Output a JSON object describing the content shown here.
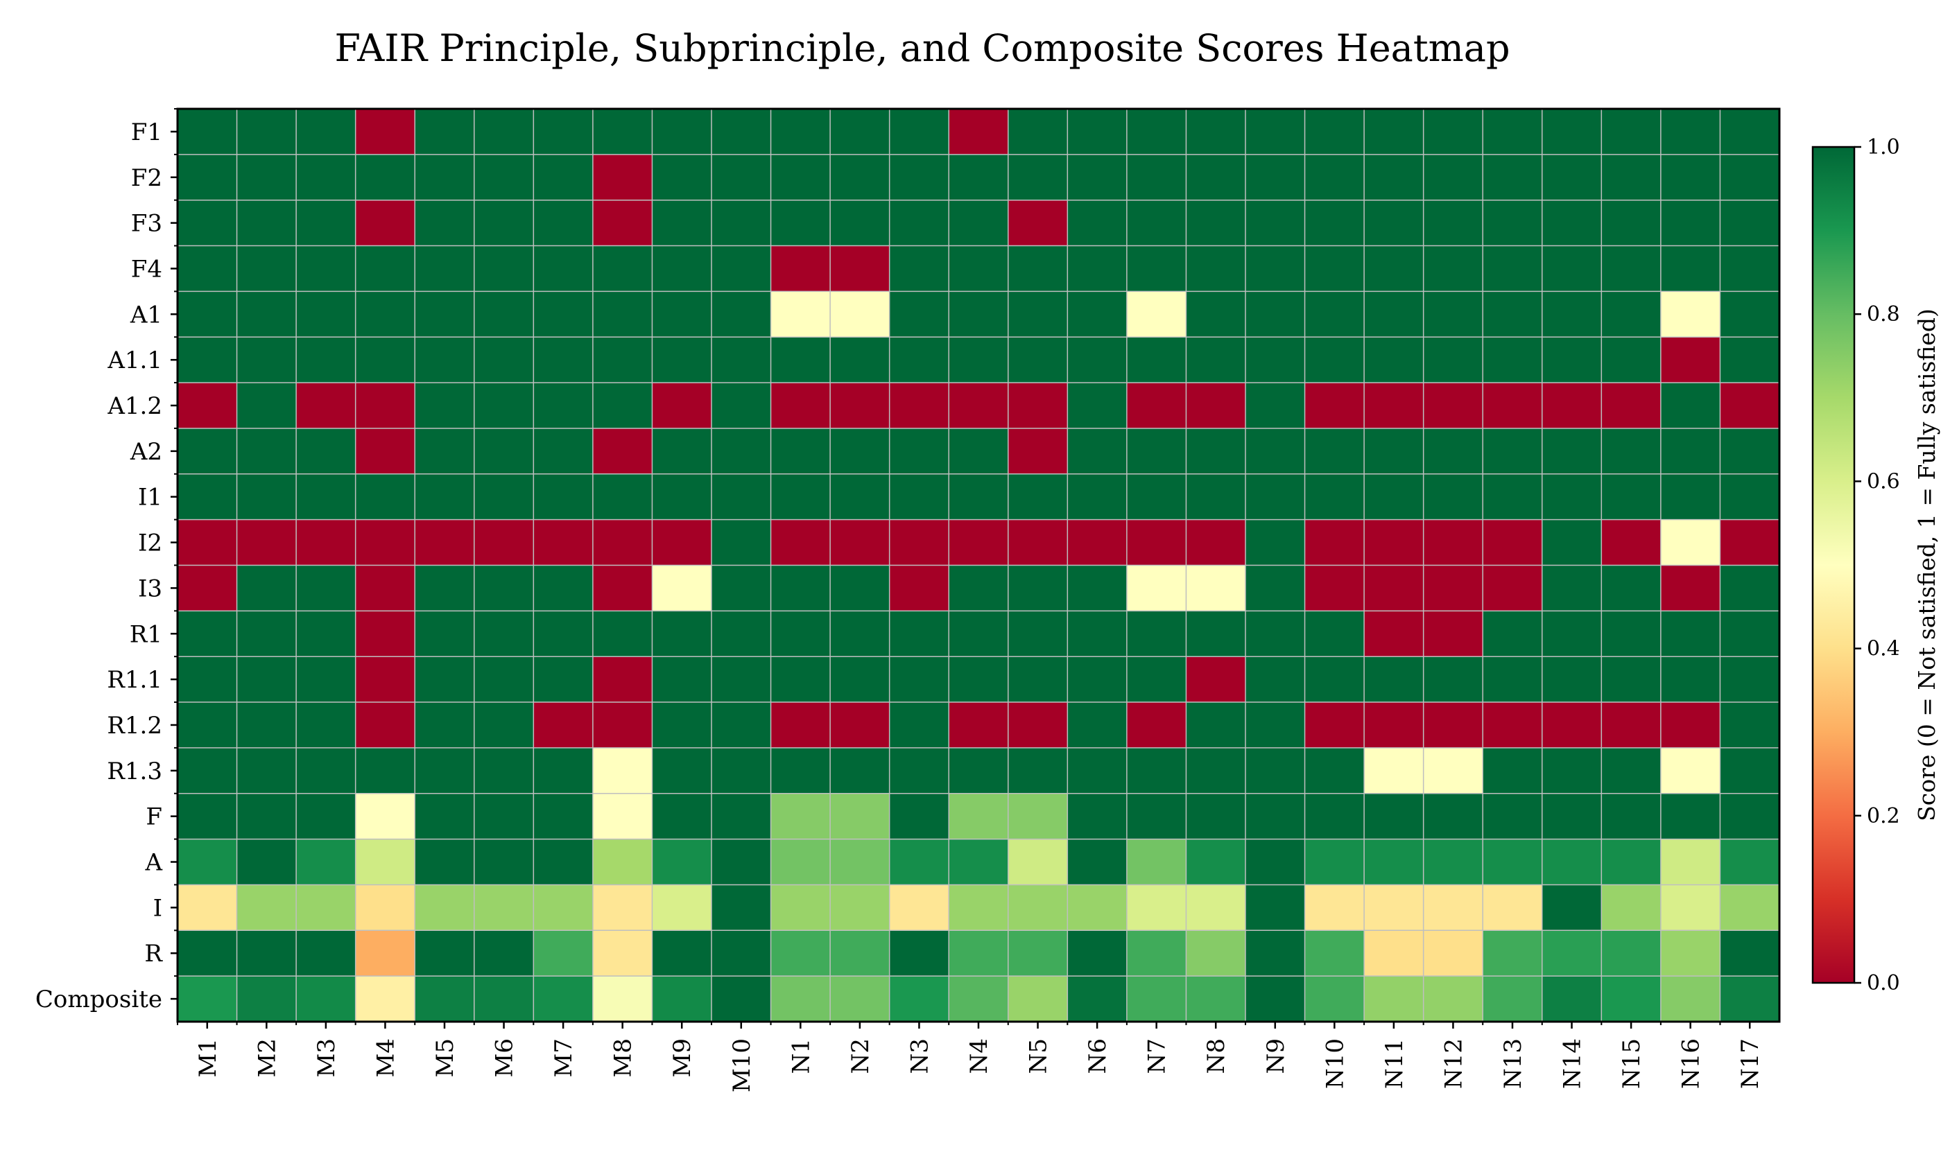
{
  "chart_data": {
    "type": "heatmap",
    "title": "FAIR Principle, Subprinciple, and Composite Scores Heatmap",
    "rows": [
      "F1",
      "F2",
      "F3",
      "F4",
      "A1",
      "A1.1",
      "A1.2",
      "A2",
      "I1",
      "I2",
      "I3",
      "R1",
      "R1.1",
      "R1.2",
      "R1.3",
      "F",
      "A",
      "I",
      "R",
      "Composite"
    ],
    "columns": [
      "M1",
      "M2",
      "M3",
      "M4",
      "M5",
      "M6",
      "M7",
      "M8",
      "M9",
      "M10",
      "N1",
      "N2",
      "N3",
      "N4",
      "N5",
      "N6",
      "N7",
      "N8",
      "N9",
      "N10",
      "N11",
      "N12",
      "N13",
      "N14",
      "N15",
      "N16",
      "N17"
    ],
    "values": [
      [
        1,
        1,
        1,
        0,
        1,
        1,
        1,
        1,
        1,
        1,
        1,
        1,
        1,
        0,
        1,
        1,
        1,
        1,
        1,
        1,
        1,
        1,
        1,
        1,
        1,
        1,
        1
      ],
      [
        1,
        1,
        1,
        1,
        1,
        1,
        1,
        0,
        1,
        1,
        1,
        1,
        1,
        1,
        1,
        1,
        1,
        1,
        1,
        1,
        1,
        1,
        1,
        1,
        1,
        1,
        1
      ],
      [
        1,
        1,
        1,
        0,
        1,
        1,
        1,
        0,
        1,
        1,
        1,
        1,
        1,
        1,
        0,
        1,
        1,
        1,
        1,
        1,
        1,
        1,
        1,
        1,
        1,
        1,
        1
      ],
      [
        1,
        1,
        1,
        1,
        1,
        1,
        1,
        1,
        1,
        1,
        0,
        0,
        1,
        1,
        1,
        1,
        1,
        1,
        1,
        1,
        1,
        1,
        1,
        1,
        1,
        1,
        1
      ],
      [
        1,
        1,
        1,
        1,
        1,
        1,
        1,
        1,
        1,
        1,
        0.5,
        0.5,
        1,
        1,
        1,
        1,
        0.5,
        1,
        1,
        1,
        1,
        1,
        1,
        1,
        1,
        0.5,
        1
      ],
      [
        1,
        1,
        1,
        1,
        1,
        1,
        1,
        1,
        1,
        1,
        1,
        1,
        1,
        1,
        1,
        1,
        1,
        1,
        1,
        1,
        1,
        1,
        1,
        1,
        1,
        0,
        1
      ],
      [
        0,
        1,
        0,
        0,
        1,
        1,
        1,
        1,
        0,
        1,
        0,
        0,
        0,
        0,
        0,
        1,
        0,
        0,
        1,
        0,
        0,
        0,
        0,
        0,
        0,
        1,
        0
      ],
      [
        1,
        1,
        1,
        0,
        1,
        1,
        1,
        0,
        1,
        1,
        1,
        1,
        1,
        1,
        0,
        1,
        1,
        1,
        1,
        1,
        1,
        1,
        1,
        1,
        1,
        1,
        1
      ],
      [
        1,
        1,
        1,
        1,
        1,
        1,
        1,
        1,
        1,
        1,
        1,
        1,
        1,
        1,
        1,
        1,
        1,
        1,
        1,
        1,
        1,
        1,
        1,
        1,
        1,
        1,
        1
      ],
      [
        0,
        0,
        0,
        0,
        0,
        0,
        0,
        0,
        0,
        1,
        0,
        0,
        0,
        0,
        0,
        0,
        0,
        0,
        1,
        0,
        0,
        0,
        0,
        1,
        0,
        0.5,
        0
      ],
      [
        0,
        1,
        1,
        0,
        1,
        1,
        1,
        0,
        0.5,
        1,
        1,
        1,
        0,
        1,
        1,
        1,
        0.5,
        0.5,
        1,
        0,
        0,
        0,
        0,
        1,
        1,
        0,
        1
      ],
      [
        1,
        1,
        1,
        0,
        1,
        1,
        1,
        1,
        1,
        1,
        1,
        1,
        1,
        1,
        1,
        1,
        1,
        1,
        1,
        1,
        0,
        0,
        1,
        1,
        1,
        1,
        1
      ],
      [
        1,
        1,
        1,
        0,
        1,
        1,
        1,
        0,
        1,
        1,
        1,
        1,
        1,
        1,
        1,
        1,
        1,
        0,
        1,
        1,
        1,
        1,
        1,
        1,
        1,
        1,
        1
      ],
      [
        1,
        1,
        1,
        0,
        1,
        1,
        0,
        0,
        1,
        1,
        0,
        0,
        1,
        0,
        0,
        1,
        0,
        1,
        1,
        0,
        0,
        0,
        0,
        0,
        0,
        0,
        1
      ],
      [
        1,
        1,
        1,
        1,
        1,
        1,
        1,
        0.5,
        1,
        1,
        1,
        1,
        1,
        1,
        1,
        1,
        1,
        1,
        1,
        1,
        0.5,
        0.5,
        1,
        1,
        1,
        0.5,
        1
      ],
      [
        1,
        1,
        1,
        0.5,
        1,
        1,
        1,
        0.5,
        1,
        1,
        0.75,
        0.75,
        1,
        0.75,
        0.75,
        1,
        1,
        1,
        1,
        1,
        1,
        1,
        1,
        1,
        1,
        1,
        1
      ],
      [
        0.92,
        1,
        0.92,
        0.62,
        1,
        1,
        1,
        0.7,
        0.92,
        1,
        0.78,
        0.78,
        0.92,
        0.92,
        0.62,
        1,
        0.78,
        0.92,
        1,
        0.92,
        0.92,
        0.92,
        0.92,
        0.92,
        0.92,
        0.62,
        0.92
      ],
      [
        0.42,
        0.72,
        0.72,
        0.4,
        0.72,
        0.72,
        0.72,
        0.42,
        0.6,
        1,
        0.72,
        0.72,
        0.42,
        0.72,
        0.72,
        0.72,
        0.6,
        0.6,
        1,
        0.42,
        0.42,
        0.42,
        0.42,
        1,
        0.72,
        0.6,
        0.72
      ],
      [
        1,
        1,
        1,
        0.3,
        1,
        1,
        0.85,
        0.42,
        1,
        1,
        0.85,
        0.85,
        1,
        0.85,
        0.85,
        1,
        0.85,
        0.75,
        1,
        0.85,
        0.4,
        0.4,
        0.85,
        0.88,
        0.88,
        0.72,
        1
      ],
      [
        0.9,
        0.95,
        0.93,
        0.45,
        0.95,
        0.95,
        0.92,
        0.52,
        0.93,
        1,
        0.78,
        0.78,
        0.9,
        0.82,
        0.72,
        0.98,
        0.85,
        0.85,
        1,
        0.85,
        0.73,
        0.73,
        0.85,
        0.95,
        0.9,
        0.75,
        0.95
      ]
    ],
    "colorbar": {
      "label": "Score (0 = Not satisfied, 1 = Fully satisfied)",
      "ticks": [
        "0.0",
        "0.2",
        "0.4",
        "0.6",
        "0.8",
        "1.0"
      ],
      "range": [
        0,
        1
      ],
      "colormap": "RdYlGn",
      "stops": [
        "#a50026",
        "#d73027",
        "#f46d43",
        "#fdae61",
        "#fee08b",
        "#ffffbf",
        "#d9ef8b",
        "#a6d96a",
        "#66bd63",
        "#1a9850",
        "#006837"
      ]
    },
    "grid": true
  }
}
